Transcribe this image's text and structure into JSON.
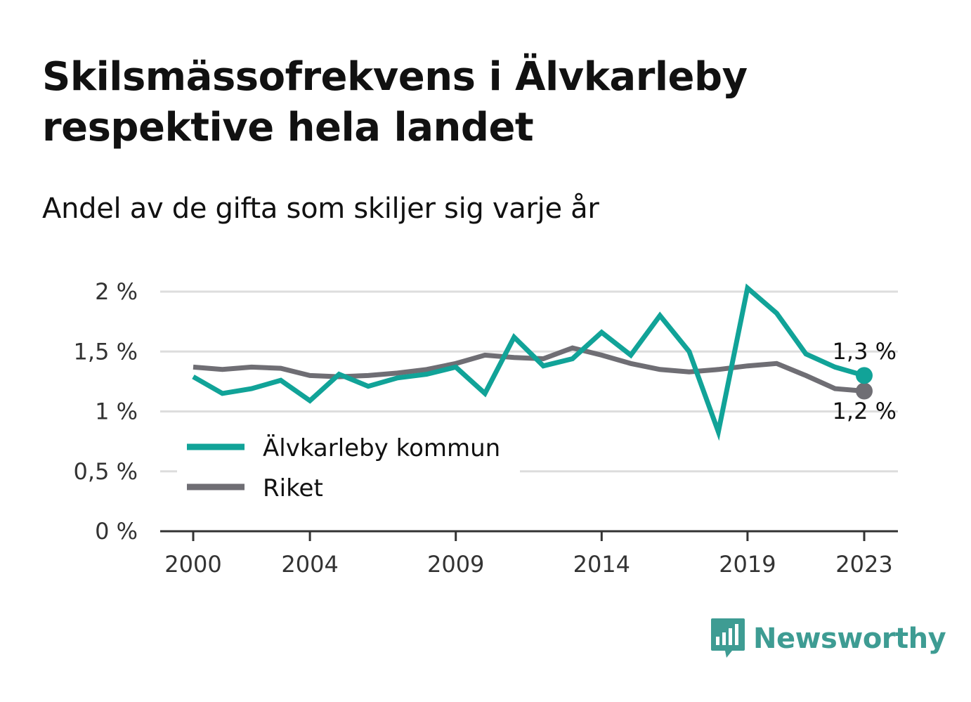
{
  "header": {
    "title": "Skilsmässofrekvens i Älvkarleby respektive hela landet",
    "subtitle": "Andel av de gifta som skiljer sig varje år"
  },
  "colors": {
    "alvkarleby": "#11a398",
    "riket": "#6f6e74",
    "grid": "#dddddd",
    "axis": "#333333",
    "brand": "#3e9c93"
  },
  "brand": {
    "name": "Newsworthy",
    "icon": "bar-chart-speech-bubble-icon"
  },
  "chart_data": {
    "type": "line",
    "x": [
      2000,
      2001,
      2002,
      2003,
      2004,
      2005,
      2006,
      2007,
      2008,
      2009,
      2010,
      2011,
      2012,
      2013,
      2014,
      2015,
      2016,
      2017,
      2018,
      2019,
      2020,
      2021,
      2022,
      2023
    ],
    "x_ticks": [
      2000,
      2004,
      2009,
      2014,
      2019,
      2023
    ],
    "x_tick_labels": [
      "2000",
      "2004",
      "2009",
      "2014",
      "2019",
      "2023"
    ],
    "y_ticks": [
      0,
      0.5,
      1,
      1.5,
      2
    ],
    "y_tick_labels": [
      "0 %",
      "0,5 %",
      "1 %",
      "1,5 %",
      "2 %"
    ],
    "ylim": [
      0,
      2
    ],
    "grid": true,
    "legend_position": "bottom-left",
    "series": [
      {
        "name": "Älvkarleby kommun",
        "color": "#11a398",
        "values": [
          1.29,
          1.15,
          1.19,
          1.26,
          1.09,
          1.31,
          1.21,
          1.28,
          1.31,
          1.37,
          1.15,
          1.62,
          1.38,
          1.44,
          1.66,
          1.47,
          1.8,
          1.5,
          0.83,
          2.03,
          1.82,
          1.48,
          1.37,
          1.3
        ],
        "end_label": "1,3 %"
      },
      {
        "name": "Riket",
        "color": "#6f6e74",
        "values": [
          1.37,
          1.35,
          1.37,
          1.36,
          1.3,
          1.29,
          1.3,
          1.32,
          1.35,
          1.4,
          1.47,
          1.45,
          1.44,
          1.53,
          1.47,
          1.4,
          1.35,
          1.33,
          1.35,
          1.38,
          1.4,
          1.3,
          1.19,
          1.17
        ],
        "end_label": "1,2 %"
      }
    ]
  }
}
